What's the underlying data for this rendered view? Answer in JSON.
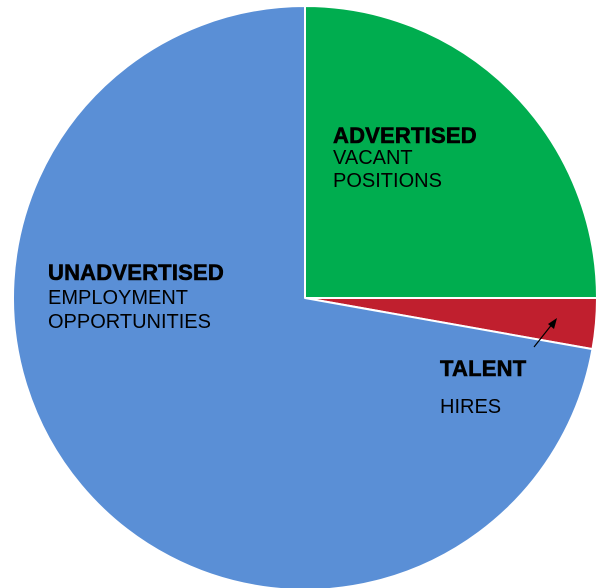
{
  "chart_data": {
    "type": "pie",
    "start_angle_deg": 0,
    "direction": "clockwise",
    "slices": [
      {
        "name": "ADVERTISED VACANT POSITIONS",
        "bold_label": "ADVERTISED",
        "label_lines": [
          "VACANT",
          "POSITIONS"
        ],
        "value": 25,
        "color": "#00ad4f"
      },
      {
        "name": "TALENT HIRES",
        "bold_label": "TALENT",
        "label_lines": [
          "HIRES"
        ],
        "value": 2.8,
        "color": "#c01f2e"
      },
      {
        "name": "UNADVERTISED EMPLOYMENT OPPORTUNITIES",
        "bold_label": "UNADVERTISED",
        "label_lines": [
          "EMPLOYMENT",
          "OPPORTUNITIES"
        ],
        "value": 72.2,
        "color": "#5a8fd6"
      }
    ],
    "legend": "none",
    "slice_border_color": "#ffffff"
  }
}
